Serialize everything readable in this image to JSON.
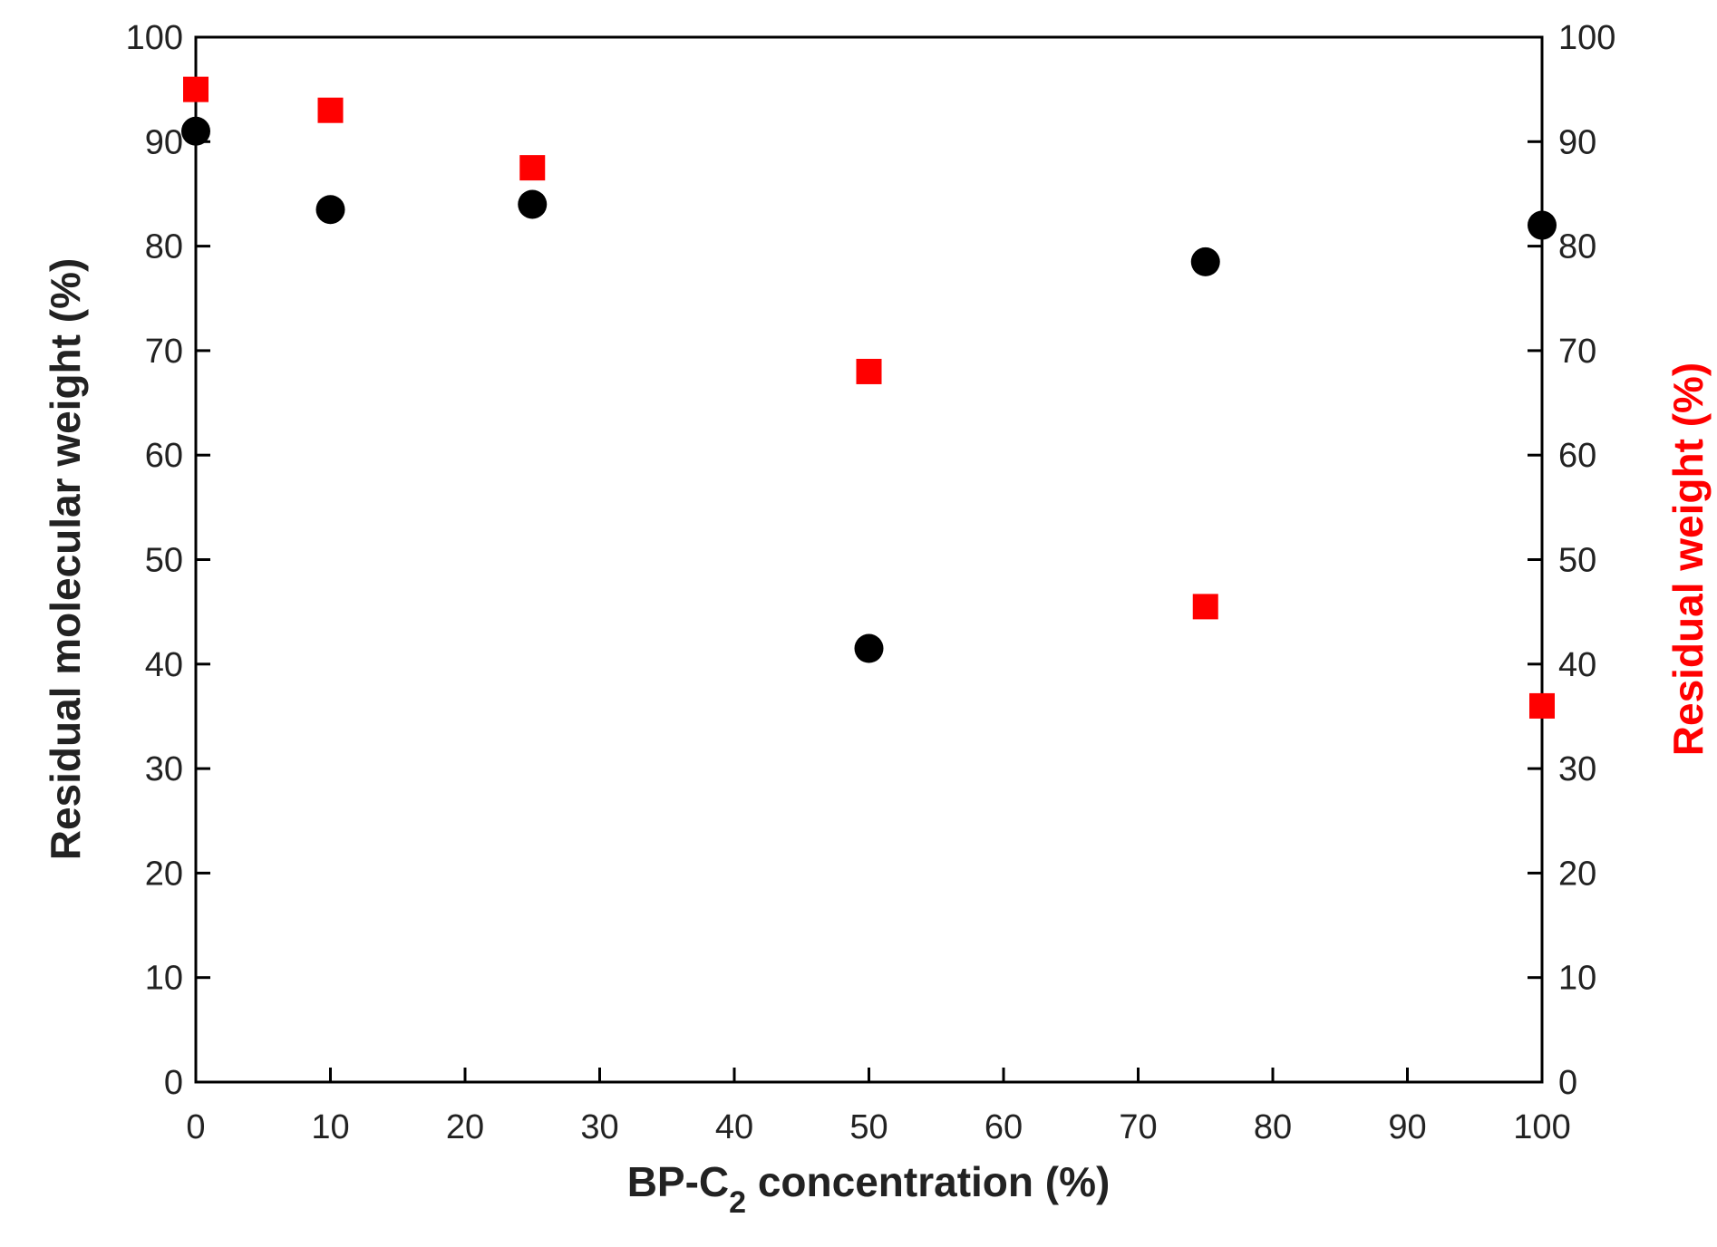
{
  "chart_data": {
    "type": "scatter",
    "title": "",
    "xlabel": {
      "main": "BP-C",
      "subscript": "2",
      "suffix": " concentration (%)"
    },
    "ylabel_left": "Residual molecular weight (%)",
    "ylabel_right": "Residual weight (%)",
    "xlim": [
      0,
      100
    ],
    "ylim_left": [
      0,
      100
    ],
    "ylim_right": [
      0,
      100
    ],
    "x_ticks": [
      "0",
      "10",
      "20",
      "30",
      "40",
      "50",
      "60",
      "70",
      "80",
      "90",
      "100"
    ],
    "y_ticks_left": [
      "0",
      "10",
      "20",
      "30",
      "40",
      "50",
      "60",
      "70",
      "80",
      "90",
      "100"
    ],
    "y_ticks_right": [
      "0",
      "10",
      "20",
      "30",
      "40",
      "50",
      "60",
      "70",
      "80",
      "90",
      "100"
    ],
    "grid": false,
    "series": [
      {
        "axis": "left",
        "marker": "circle",
        "color": "#000000",
        "points": [
          {
            "x": 0,
            "y": 91
          },
          {
            "x": 10,
            "y": 83.5
          },
          {
            "x": 25,
            "y": 84
          },
          {
            "x": 50,
            "y": 41.5
          },
          {
            "x": 75,
            "y": 78.5
          },
          {
            "x": 100,
            "y": 82
          }
        ]
      },
      {
        "axis": "right",
        "marker": "square",
        "color": "#ff0000",
        "points": [
          {
            "x": 0,
            "y": 95
          },
          {
            "x": 10,
            "y": 93
          },
          {
            "x": 25,
            "y": 87.5
          },
          {
            "x": 50,
            "y": 68
          },
          {
            "x": 75,
            "y": 45.5
          },
          {
            "x": 100,
            "y": 36
          }
        ]
      }
    ]
  },
  "colors": {
    "left_axis_title": "#222222",
    "right_axis_title": "#ff0000",
    "x_axis_title": "#222222",
    "frame": "#000000"
  }
}
